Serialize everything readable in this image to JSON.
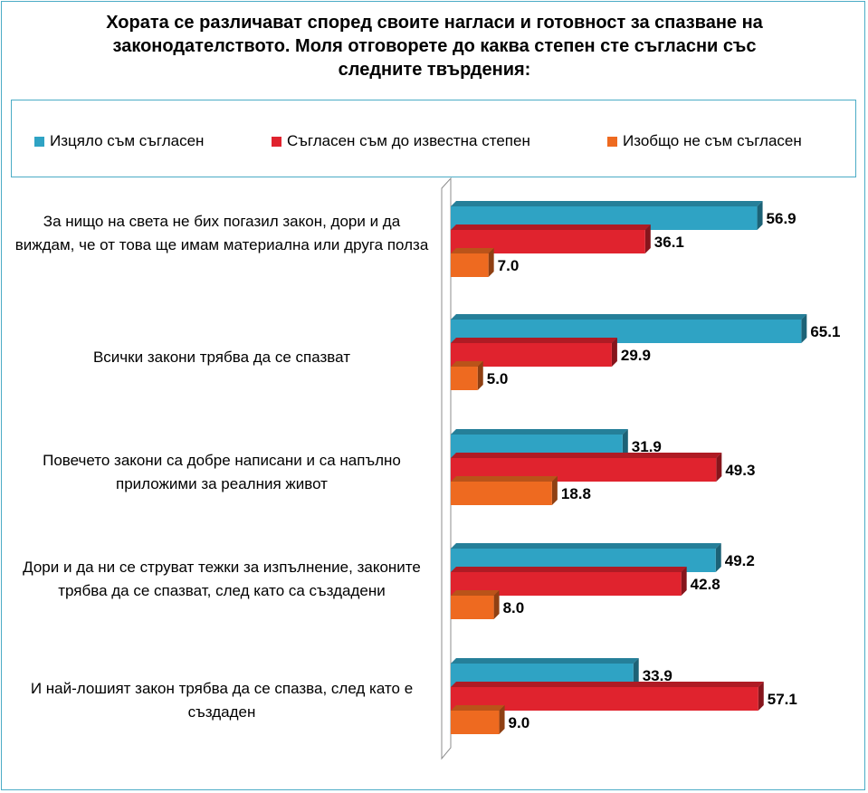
{
  "title": "Хората се различават според своите нагласи и готовност за спазване на законодателството. Моля отговорете до каква степен сте съгласни със следните твърдения:",
  "legend": {
    "s0": "Изцяло съм съгласен",
    "s1": "Съгласен съм до известна степен",
    "s2": "Изобщо не съм съгласен"
  },
  "categories": {
    "c0": "За нищо на света не бих погазил закон, дори и да виждам, че от това ще имам материална или друга полза",
    "c1": "Всички закони трябва да се спазват",
    "c2": "Повечето закони са добре написани и са напълно приложими за реалния живот",
    "c3": "Дори и да ни се струват тежки за изпълнение, законите трябва да се спазват, след като са създадени",
    "c4": "И най-лошият закон трябва да се спазва, след като е създаден"
  },
  "colors": {
    "s0": "#2fa3c4",
    "s1": "#e0232e",
    "s2": "#ee6a20",
    "border": "#4bacc6"
  },
  "chart_data": {
    "type": "bar",
    "orientation": "horizontal",
    "style": "3d-clustered",
    "categories": [
      "За нищо на света не бих погазил закон, дори и да виждам, че от това ще имам материална или друга полза",
      "Всички закони трябва да се спазват",
      "Повечето закони са добре написани и са напълно приложими за реалния живот",
      "Дори и да ни се струват тежки за изпълнение, законите трябва да се спазват, след като са създадени",
      "И най-лошият закон трябва да се спазва, след като е създаден"
    ],
    "series": [
      {
        "name": "Изцяло съм съгласен",
        "values": [
          56.9,
          65.1,
          31.9,
          49.2,
          33.9
        ]
      },
      {
        "name": "Съгласен съм до известна степен",
        "values": [
          36.1,
          29.9,
          49.3,
          42.8,
          57.1
        ]
      },
      {
        "name": "Изобщо не съм съгласен",
        "values": [
          7.0,
          5.0,
          18.8,
          8.0,
          9.0
        ]
      }
    ],
    "value_labels": [
      [
        "56.9",
        "65.1",
        "31.9",
        "49.2",
        "33.9"
      ],
      [
        "36.1",
        "29.9",
        "49.3",
        "42.8",
        "57.1"
      ],
      [
        "7.0",
        "5.0",
        "18.8",
        "8.0",
        "9.0"
      ]
    ],
    "xlim": [
      0,
      70
    ],
    "legend_position": "top",
    "grid": false
  }
}
